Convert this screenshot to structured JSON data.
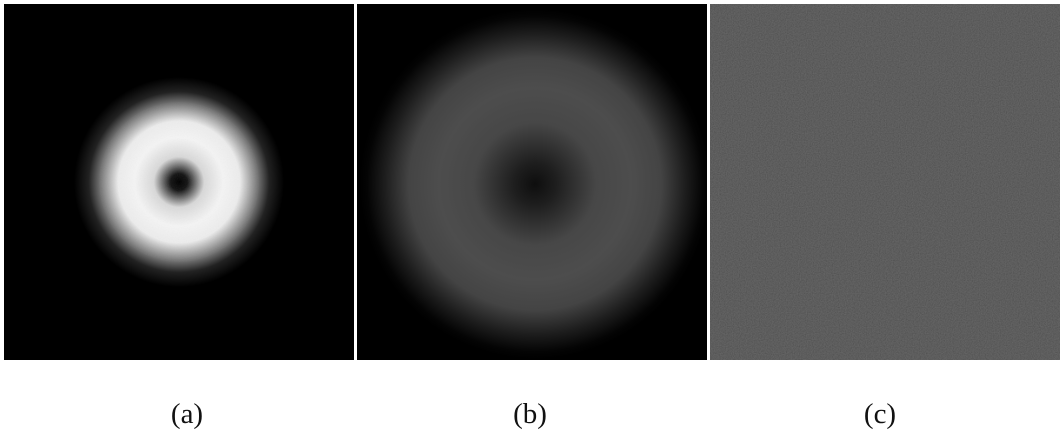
{
  "panels": [
    {
      "caption": "(a)",
      "colors": {
        "background": "#000000",
        "ring": "#f2f2f2",
        "core": "#000000"
      }
    },
    {
      "caption": "(b)",
      "colors": {
        "background": "#000000",
        "ring": "#4a4a4a",
        "core": "#111111"
      }
    },
    {
      "caption": "(c)",
      "colors": {
        "background": "#1f1f1f"
      }
    }
  ]
}
